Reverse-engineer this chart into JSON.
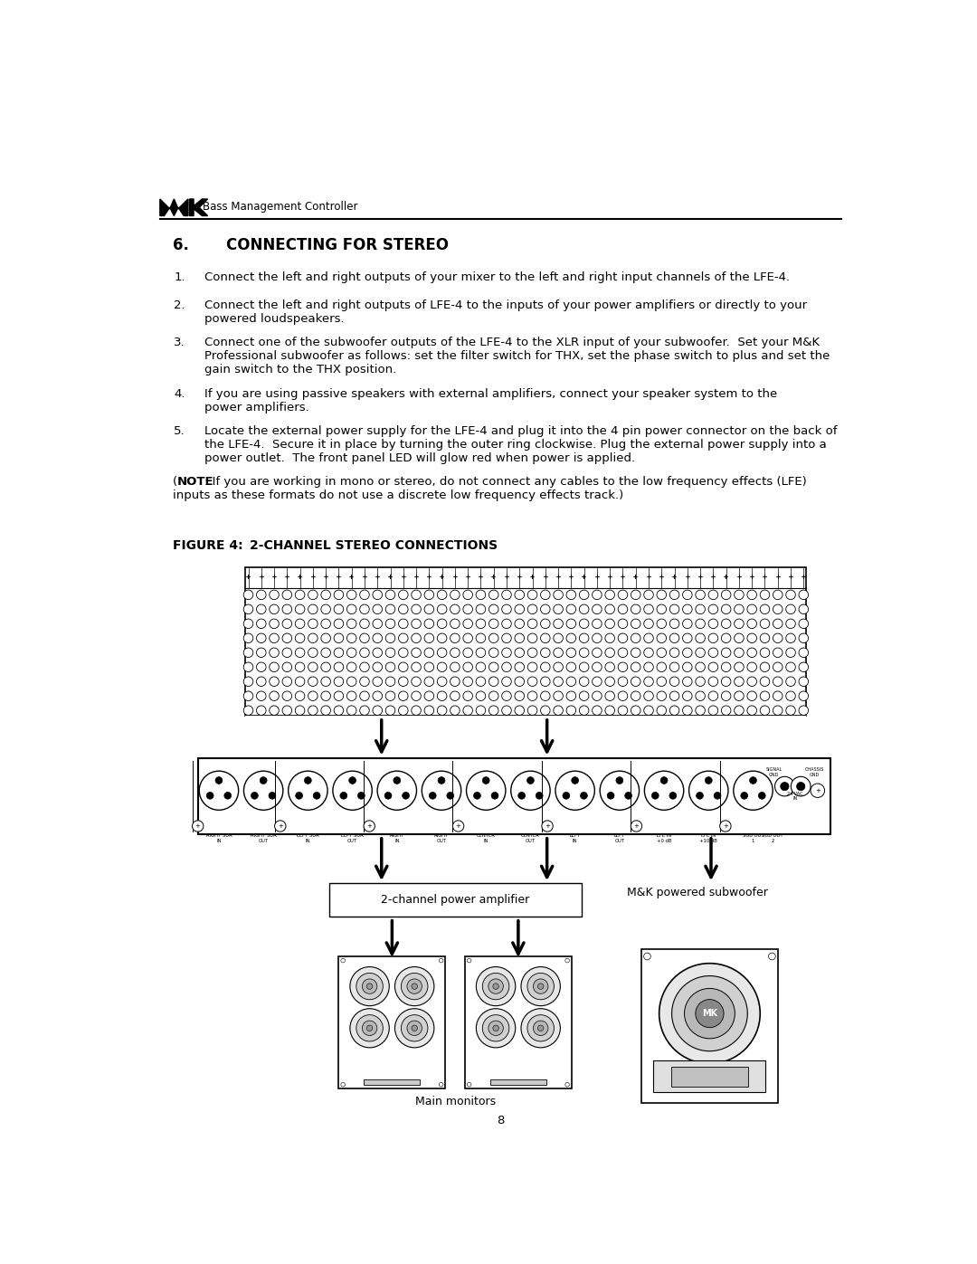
{
  "page_title": "Bass Management Controller",
  "section_number": "6.",
  "section_title": "CONNECTING FOR STEREO",
  "item1": "Connect the left and right outputs of your mixer to the left and right input channels of the LFE-4.",
  "item2_l1": "Connect the left and right outputs of LFE-4 to the inputs of your power amplifiers or directly to your",
  "item2_l2": "powered loudspeakers.",
  "item3_l1": "Connect one of the subwoofer outputs of the LFE-4 to the XLR input of your subwoofer.  Set your M&K",
  "item3_l2": "Professional subwoofer as follows: set the filter switch for THX, set the phase switch to plus and set the",
  "item3_l3": "gain switch to the THX position.",
  "item4_l1": "If you are using passive speakers with external amplifiers, connect your speaker system to the",
  "item4_l2": "power amplifiers.",
  "item5_l1": "Locate the external power supply for the LFE-4 and plug it into the 4 pin power connector on the back of",
  "item5_l2": "the LFE-4.  Secure it in place by turning the outer ring clockwise. Plug the external power supply into a",
  "item5_l3": "power outlet.  The front panel LED will glow red when power is applied.",
  "note_bold": "NOTE",
  "note_rest": ": If you are working in mono or stereo, do not connect any cables to the low frequency effects (LFE)\ninputs as these formats do not use a discrete low frequency effects track.)",
  "fig_label": "FIGURE 4:",
  "fig_title": "2-CHANNEL STEREO CONNECTIONS",
  "amp_label": "2-channel power amplifier",
  "sub_label": "M&K powered subwoofer",
  "monitor_label": "Main monitors",
  "page_number": "8",
  "bg_color": "#ffffff"
}
